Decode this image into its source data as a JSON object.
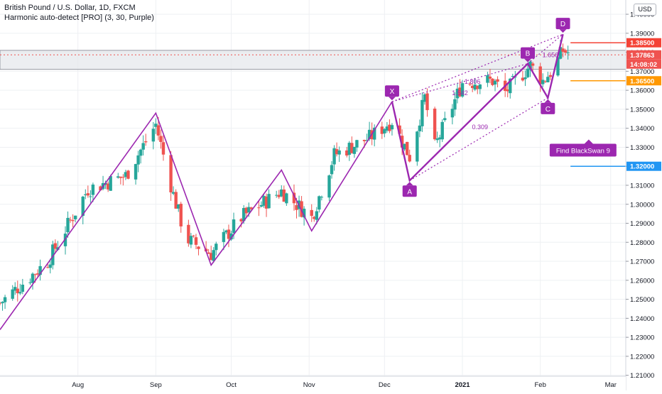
{
  "header": {
    "symbol_line": "British Pound / U.S. Dollar, 1D, FXCM",
    "indicator_line": "Harmonic auto-detect [PRO] (3, 30, Purple)",
    "currency_button": "USD"
  },
  "colors": {
    "up": "#26a69a",
    "down": "#ef5350",
    "pattern": "#9c27b0",
    "pattern_label_bg": "#9c27b0",
    "orange_line": "#ff9800",
    "red_line": "#f44336",
    "blue_line": "#2196f3",
    "price_label": "#ef5350",
    "zone": "#d1d4dc"
  },
  "chart_data": {
    "type": "candlestick",
    "title": "British Pound / U.S. Dollar, 1D, FXCM",
    "y_axis": {
      "ylim": [
        1.2095,
        1.4075
      ],
      "tick_labels": [
        "1.21000",
        "1.22000",
        "1.23000",
        "1.24000",
        "1.25000",
        "1.26000",
        "1.27000",
        "1.28000",
        "1.29000",
        "1.30000",
        "1.31000",
        "1.32000",
        "1.33000",
        "1.34000",
        "1.35000",
        "1.36000",
        "1.37000",
        "1.38000",
        "1.39000",
        "1.40000"
      ]
    },
    "x_axis": {
      "start": "2020-07-01",
      "end": "2021-03-07",
      "tick_labels": [
        {
          "label": "Aug",
          "date": "2020-08-01",
          "bold": false
        },
        {
          "label": "Sep",
          "date": "2020-09-01",
          "bold": false
        },
        {
          "label": "Oct",
          "date": "2020-10-01",
          "bold": false
        },
        {
          "label": "Nov",
          "date": "2020-11-01",
          "bold": false
        },
        {
          "label": "Dec",
          "date": "2020-12-01",
          "bold": false
        },
        {
          "label": "2021",
          "date": "2021-01-01",
          "bold": true
        },
        {
          "label": "Feb",
          "date": "2021-02-01",
          "bold": false
        },
        {
          "label": "Mar",
          "date": "2021-03-01",
          "bold": false
        }
      ]
    },
    "anchors": [
      {
        "date": "2020-07-01",
        "price": 1.248
      },
      {
        "date": "2020-07-20",
        "price": 1.27
      },
      {
        "date": "2020-08-05",
        "price": 1.308
      },
      {
        "date": "2020-08-20",
        "price": 1.315
      },
      {
        "date": "2020-09-01",
        "price": 1.342
      },
      {
        "date": "2020-09-08",
        "price": 1.305
      },
      {
        "date": "2020-09-13",
        "price": 1.282
      },
      {
        "date": "2020-09-23",
        "price": 1.274
      },
      {
        "date": "2020-10-05",
        "price": 1.293
      },
      {
        "date": "2020-10-21",
        "price": 1.307
      },
      {
        "date": "2020-11-02",
        "price": 1.293
      },
      {
        "date": "2020-11-11",
        "price": 1.326
      },
      {
        "date": "2020-11-25",
        "price": 1.335
      },
      {
        "date": "2020-12-04",
        "price": 1.344
      },
      {
        "date": "2020-12-11",
        "price": 1.325
      },
      {
        "date": "2020-12-17",
        "price": 1.356
      },
      {
        "date": "2020-12-21",
        "price": 1.33
      },
      {
        "date": "2021-01-01",
        "price": 1.364
      },
      {
        "date": "2021-01-13",
        "price": 1.365
      },
      {
        "date": "2021-01-18",
        "price": 1.359
      },
      {
        "date": "2021-01-28",
        "price": 1.373
      },
      {
        "date": "2021-02-02",
        "price": 1.365
      },
      {
        "date": "2021-02-06",
        "price": 1.371
      },
      {
        "date": "2021-02-10",
        "price": 1.381
      },
      {
        "date": "2021-02-14",
        "price": 1.3786
      }
    ],
    "zigzag": [
      {
        "date": "2020-07-01",
        "price": 1.234
      },
      {
        "date": "2020-09-01",
        "price": 1.348
      },
      {
        "date": "2020-09-23",
        "price": 1.268
      },
      {
        "date": "2020-10-21",
        "price": 1.318
      },
      {
        "date": "2020-11-02",
        "price": 1.286
      },
      {
        "date": "2020-12-04",
        "price": 1.354
      }
    ],
    "harmonic_points": [
      {
        "label": "X",
        "date": "2020-12-04",
        "price": 1.354
      },
      {
        "label": "A",
        "date": "2020-12-11",
        "price": 1.3125
      },
      {
        "label": "B",
        "date": "2021-01-27",
        "price": 1.374
      },
      {
        "label": "C",
        "date": "2021-02-04",
        "price": 1.356
      },
      {
        "label": "D",
        "date": "2021-02-10",
        "price": 1.3895
      }
    ],
    "ratio_labels": [
      {
        "text": "1.806",
        "date": "2021-01-05",
        "price": 1.3635
      },
      {
        "text": "1.542",
        "date": "2020-12-31",
        "price": 1.3575
      },
      {
        "text": "1.656",
        "date": "2021-02-05",
        "price": 1.3775
      },
      {
        "text": "0.309",
        "date": "2021-01-08",
        "price": 1.3395
      }
    ],
    "horizontal_levels": [
      {
        "price": 1.385,
        "label": "1.38500",
        "color": "#f44336"
      },
      {
        "price": 1.365,
        "label": "1.36500",
        "color": "#ff9800"
      },
      {
        "price": 1.32,
        "label": "1.32000",
        "color": "#2196f3"
      }
    ],
    "current_price": {
      "price": 1.37863,
      "label": "1.37863",
      "countdown": "14:08:02"
    },
    "zone": {
      "top": 1.381,
      "bottom": 1.371
    },
    "annotation": {
      "text": "Find BlackSwan 9",
      "date": "2021-02-18",
      "price": 1.3285
    }
  }
}
